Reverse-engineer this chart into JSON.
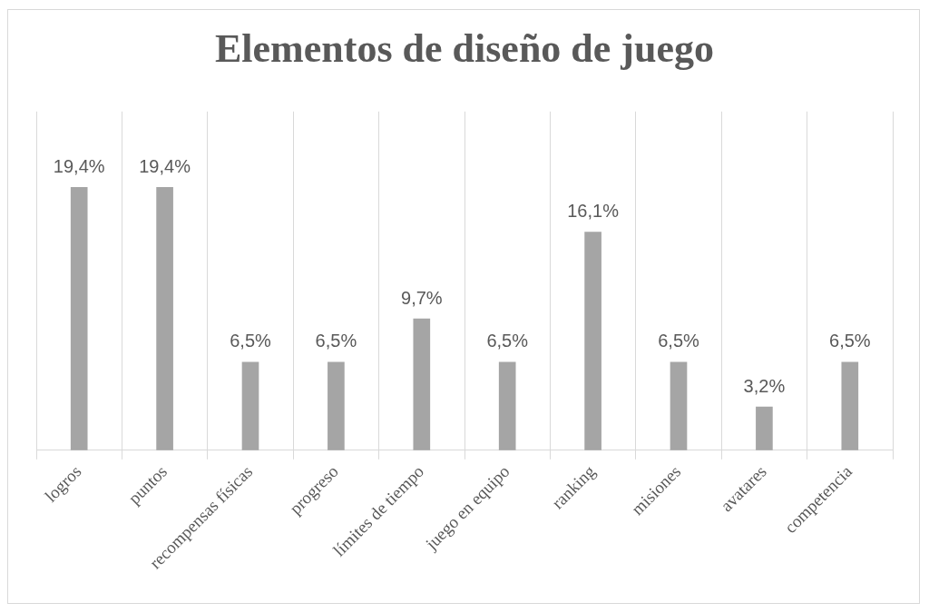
{
  "chart_data": {
    "type": "bar",
    "title": "Elementos de diseño de juego",
    "categories": [
      "logros",
      "puntos",
      "recompensas físicas",
      "progreso",
      "límites de tiempo",
      "juego en equipo",
      "ranking",
      "misiones",
      "avatares",
      "competencia"
    ],
    "values": [
      19.4,
      19.4,
      6.5,
      6.5,
      9.7,
      6.5,
      16.1,
      6.5,
      3.2,
      6.5
    ],
    "value_labels": [
      "19,4%",
      "19,4%",
      "6,5%",
      "6,5%",
      "9,7%",
      "6,5%",
      "16,1%",
      "6,5%",
      "3,2%",
      "6,5%"
    ],
    "color": "#a5a5a5",
    "ylim": [
      0,
      25
    ],
    "grid": "x",
    "legend": false
  }
}
